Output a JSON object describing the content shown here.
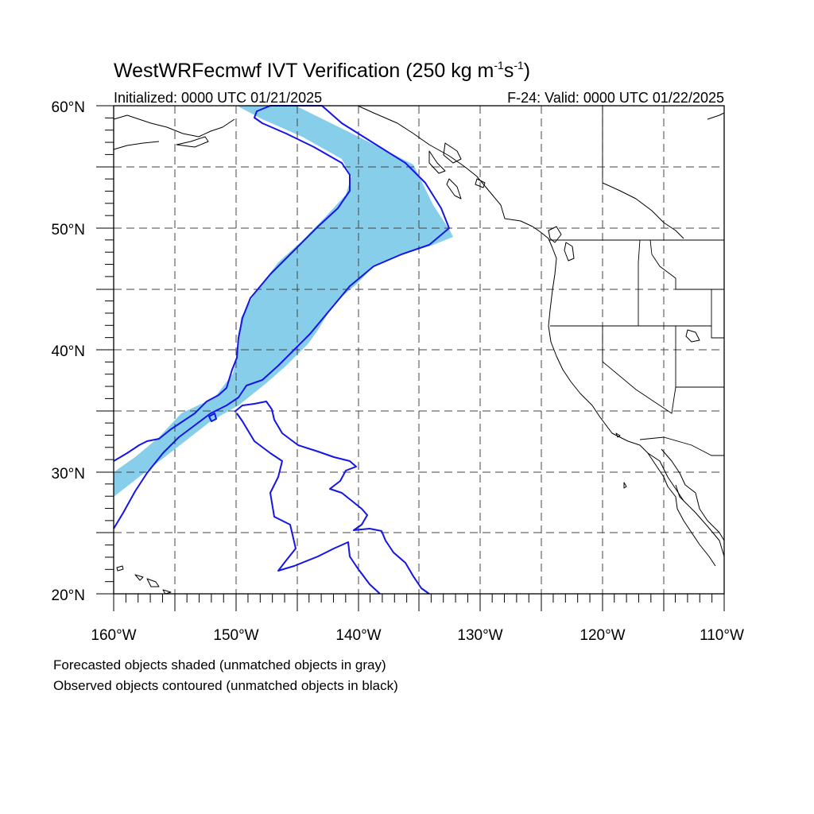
{
  "title": {
    "main": "WestWRFecmwf IVT Verification (250 kg m",
    "sup1": "-1",
    "mid": "s",
    "sup2": "-1",
    "close": ")"
  },
  "initialized": "Initialized: 0000 UTC 01/21/2025",
  "valid": "F-24: Valid: 0000 UTC 01/22/2025",
  "lat_labels": [
    "60°N",
    "50°N",
    "40°N",
    "30°N",
    "20°N"
  ],
  "lon_labels": [
    "160°W",
    "150°W",
    "140°W",
    "130°W",
    "120°W",
    "110°W"
  ],
  "map_extent": {
    "lon_min": -160,
    "lon_max": -110,
    "lat_min": 20,
    "lat_max": 60
  },
  "legend": {
    "forecast": "Forecasted objects shaded (unmatched objects in gray)",
    "observed": "Observed objects contoured (unmatched objects in black)"
  },
  "colors": {
    "forecast_fill": "#87ceeb",
    "observed_contour": "#1515e6",
    "map_lines": "#000000"
  }
}
